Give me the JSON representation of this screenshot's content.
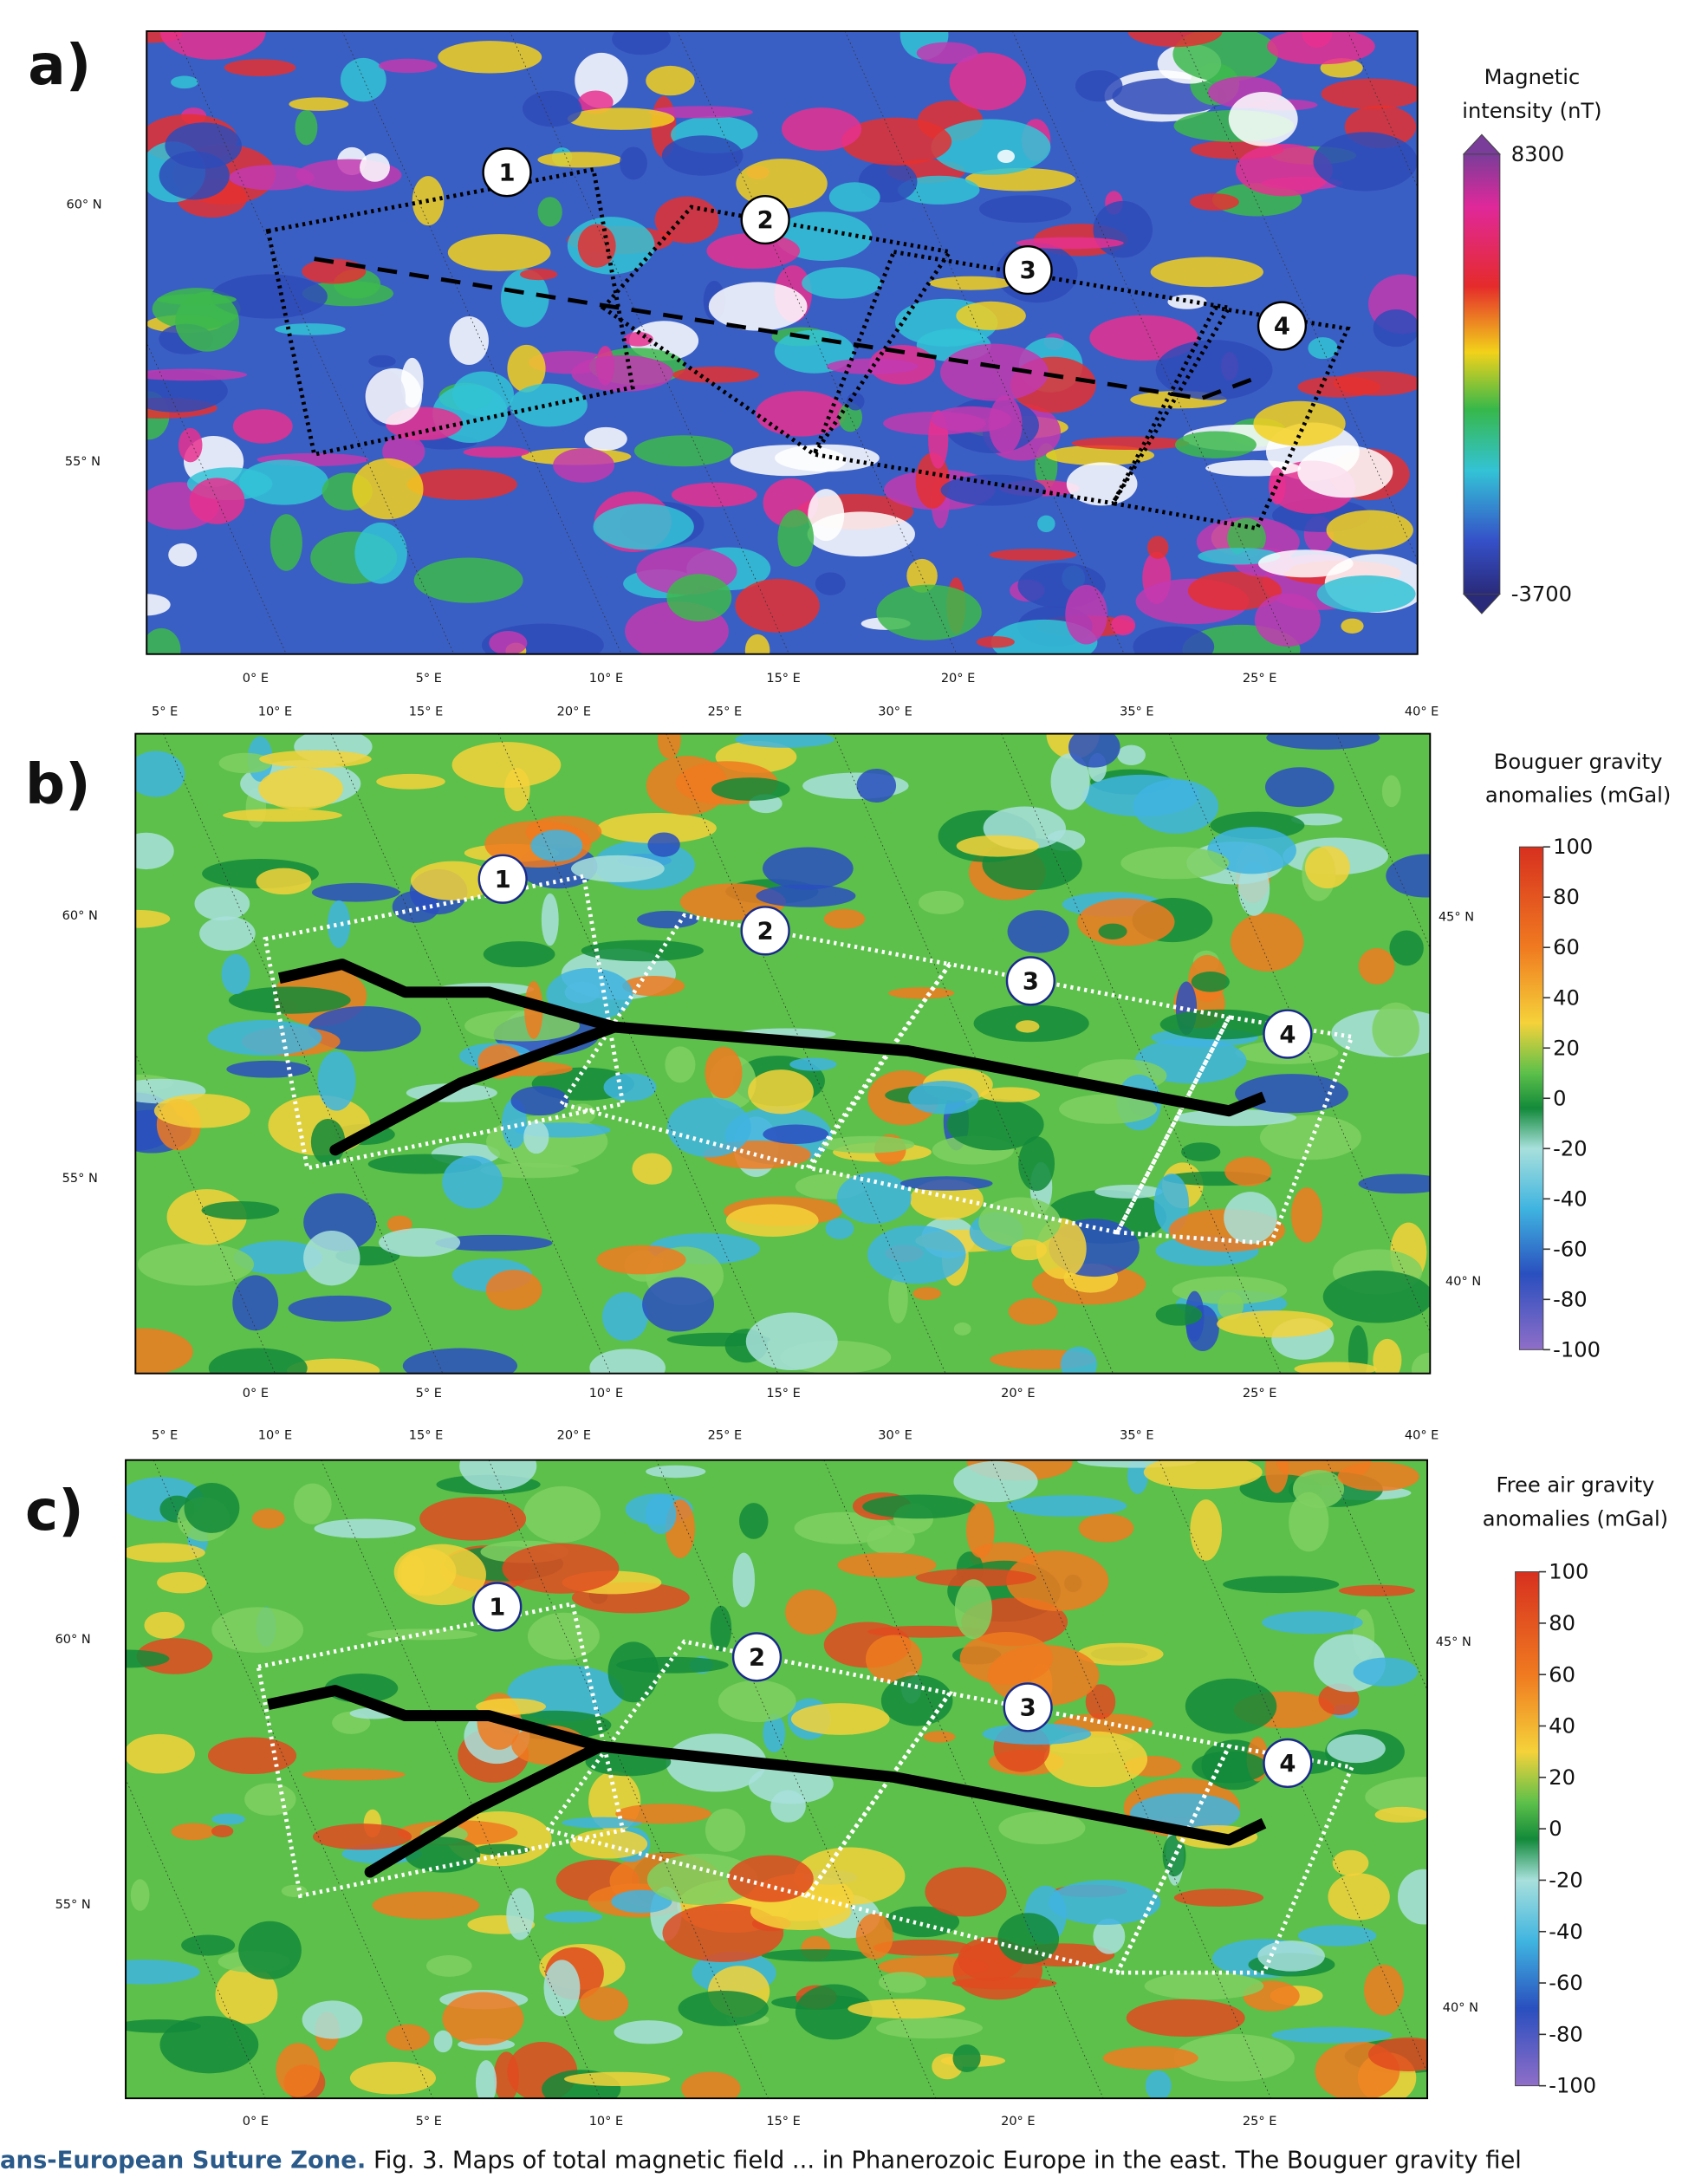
{
  "panels": [
    {
      "label": "a)",
      "colorbar": {
        "title": [
          "Magnetic",
          "intensity (nT)"
        ],
        "lim": [
          -3700,
          8300
        ],
        "ticks": [
          8300,
          -3700
        ]
      },
      "lat_left": [
        "60° N",
        "55° N"
      ],
      "lon_bottom": [
        "0° E",
        "5° E",
        "10° E",
        "15° E",
        "20° E",
        "25° E"
      ],
      "boxes": [
        "1",
        "2",
        "3",
        "4"
      ]
    },
    {
      "label": "b)",
      "colorbar": {
        "title": [
          "Bouguer gravity",
          "anomalies (mGal)"
        ],
        "lim": [
          -100,
          100
        ],
        "ticks": [
          100,
          80,
          60,
          40,
          20,
          0,
          -20,
          -40,
          -60,
          -80,
          -100
        ]
      },
      "lat_left": [
        "60° N",
        "55° N"
      ],
      "lat_right": [
        "45° N",
        "40° N"
      ],
      "lon_top": [
        "5° E",
        "10° E",
        "15° E",
        "20° E",
        "25° E",
        "30° E",
        "35° E",
        "40° E"
      ],
      "lon_bottom": [
        "0° E",
        "5° E",
        "10° E",
        "15° E",
        "20° E",
        "25° E"
      ],
      "boxes": [
        "1",
        "2",
        "3",
        "4"
      ]
    },
    {
      "label": "c)",
      "colorbar": {
        "title": [
          "Free air gravity",
          "anomalies (mGal)"
        ],
        "lim": [
          -100,
          100
        ],
        "ticks": [
          100,
          80,
          60,
          40,
          20,
          0,
          -20,
          -40,
          -60,
          -80,
          -100
        ]
      },
      "lat_left": [
        "60° N",
        "55° N"
      ],
      "lat_right": [
        "45° N",
        "40° N"
      ],
      "lon_top": [
        "5° E",
        "10° E",
        "15° E",
        "20° E",
        "25° E",
        "30° E",
        "35° E",
        "40° E"
      ],
      "lon_bottom": [
        "0° E",
        "5° E",
        "10° E",
        "15° E",
        "20° E",
        "25° E"
      ],
      "boxes": [
        "1",
        "2",
        "3",
        "4"
      ]
    }
  ],
  "caption": {
    "lead": "ans-European Suture Zone.",
    "text": " Fig. 3. Maps of total magnetic field ... in Phanerozoic Europe in the east. The Bouguer gravity fiel"
  }
}
